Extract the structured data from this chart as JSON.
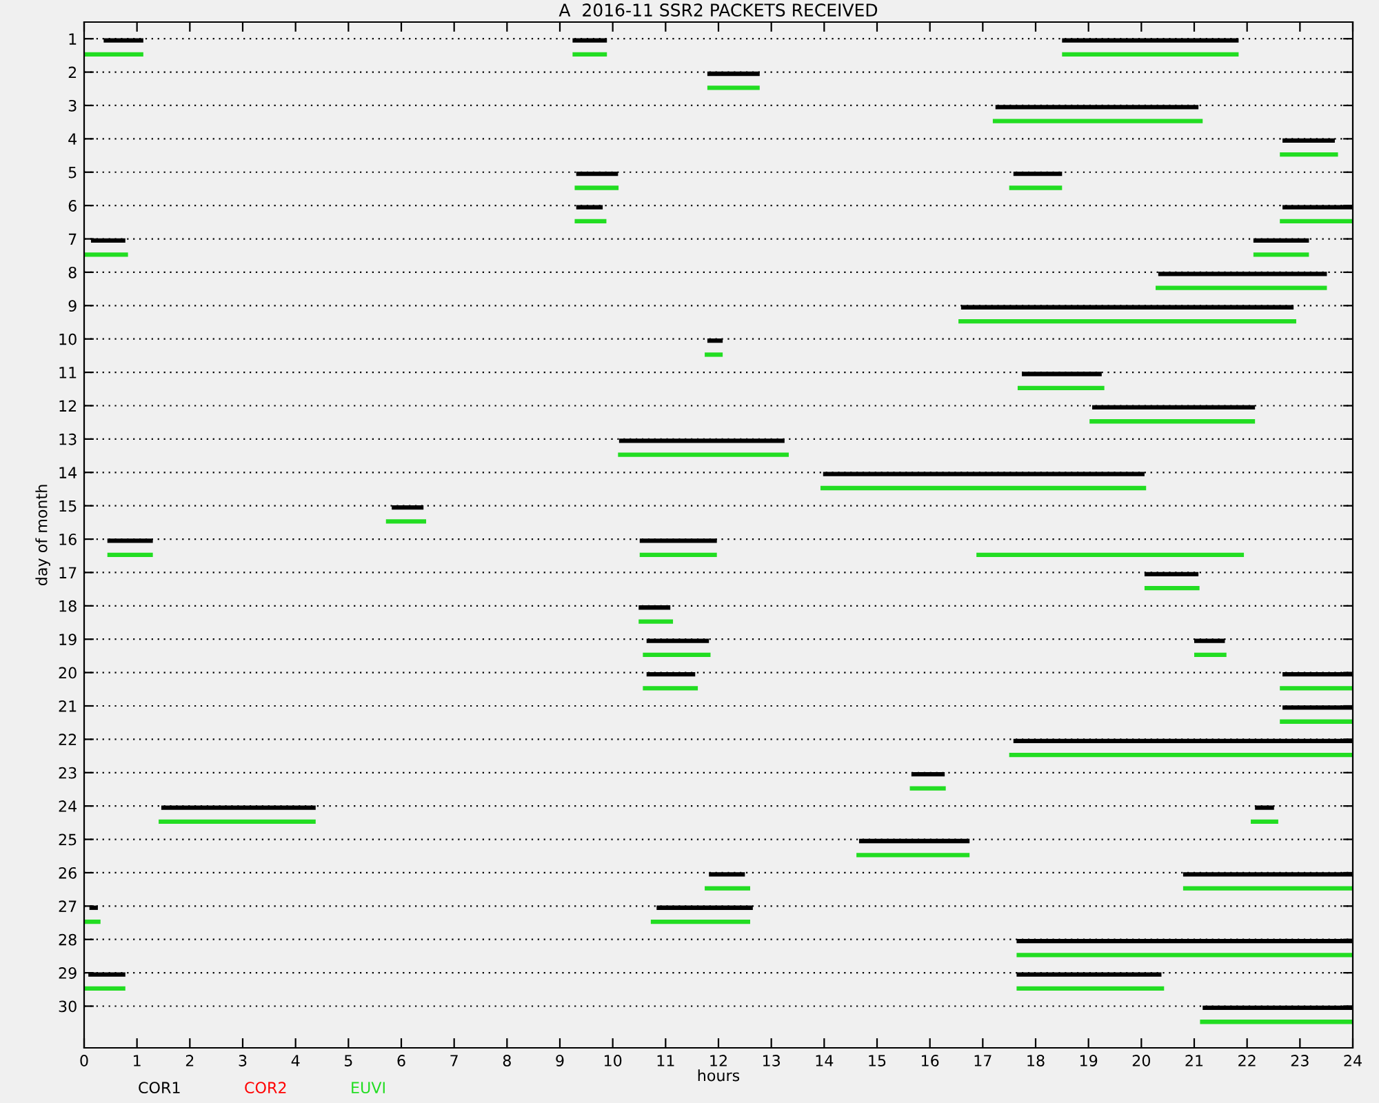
{
  "chart_data": {
    "type": "bar",
    "orientation": "horizontal",
    "title": "A  2016-11 SSR2 PACKETS RECEIVED",
    "xlabel": "hours",
    "ylabel": "day of month",
    "categories": [
      "1",
      "2",
      "3",
      "4",
      "5",
      "6",
      "7",
      "8",
      "9",
      "10",
      "11",
      "12",
      "13",
      "14",
      "15",
      "16",
      "17",
      "18",
      "19",
      "20",
      "21",
      "22",
      "23",
      "24",
      "25",
      "26",
      "27",
      "28",
      "29",
      "30"
    ],
    "xlim": [
      0,
      24
    ],
    "xticks": [
      0,
      1,
      2,
      3,
      4,
      5,
      6,
      7,
      8,
      9,
      10,
      11,
      12,
      13,
      14,
      15,
      16,
      17,
      18,
      19,
      20,
      21,
      22,
      23,
      24
    ],
    "grid": "y",
    "legend": "bottom",
    "series": [
      {
        "name": "COR1",
        "color": "#000000",
        "base": [
          0.37,
          11.79,
          17.24,
          22.67,
          9.31,
          9.31,
          0.13,
          20.32,
          16.59,
          11.79,
          17.74,
          19.07,
          10.12,
          13.98,
          5.82,
          0.44,
          20.06,
          10.49,
          10.64,
          10.64,
          22.67,
          17.58,
          15.65,
          1.46,
          14.66,
          11.82,
          0.1,
          17.64,
          0.08,
          21.16
        ],
        "values": [
          0.75,
          0.99,
          3.84,
          0.99,
          0.79,
          0.5,
          0.65,
          3.19,
          6.29,
          0.29,
          1.51,
          3.08,
          3.13,
          6.08,
          0.6,
          0.86,
          1.02,
          0.6,
          1.18,
          0.92,
          1.33,
          6.42,
          0.63,
          2.92,
          2.09,
          0.68,
          0.16,
          6.36,
          0.7,
          2.84
        ]
      },
      {
        "color": "#000000",
        "base": [
          9.24,
          null,
          null,
          null,
          17.58,
          22.67,
          22.12,
          null,
          null,
          null,
          null,
          null,
          null,
          null,
          null,
          10.51,
          null,
          null,
          21.0,
          22.67,
          null,
          null,
          null,
          22.15,
          null,
          20.79,
          10.83,
          null,
          17.64,
          null
        ],
        "values": [
          0.65,
          null,
          null,
          null,
          0.92,
          1.33,
          1.05,
          null,
          null,
          null,
          null,
          null,
          null,
          null,
          null,
          1.46,
          null,
          null,
          0.58,
          1.33,
          null,
          null,
          null,
          0.36,
          null,
          3.21,
          1.82,
          null,
          2.74,
          null
        ]
      },
      {
        "color": "#000000",
        "base": [
          18.5,
          null,
          null,
          null,
          null,
          null,
          null,
          null,
          null,
          null,
          null,
          null,
          null,
          null,
          null,
          null,
          null,
          null,
          null,
          null,
          null,
          null,
          null,
          null,
          null,
          null,
          null,
          null,
          null,
          null
        ],
        "values": [
          3.34,
          null,
          null,
          null,
          null,
          null,
          null,
          null,
          null,
          null,
          null,
          null,
          null,
          null,
          null,
          null,
          null,
          null,
          null,
          null,
          null,
          null,
          null,
          null,
          null,
          null,
          null,
          null,
          null,
          null
        ]
      },
      {
        "name": "COR2",
        "color": "#ff0000",
        "base": [
          null,
          null,
          null,
          null,
          null,
          null,
          null,
          null,
          null,
          null,
          null,
          null,
          null,
          null,
          null,
          null,
          null,
          null,
          null,
          null,
          null,
          null,
          null,
          null,
          null,
          null,
          null,
          null,
          null,
          null
        ],
        "values": [
          null,
          null,
          null,
          null,
          null,
          null,
          null,
          null,
          null,
          null,
          null,
          null,
          null,
          null,
          null,
          null,
          null,
          null,
          null,
          null,
          null,
          null,
          null,
          null,
          null,
          null,
          null,
          null,
          null,
          null
        ]
      },
      {
        "name": "EUVI",
        "color": "#22dd22",
        "base": [
          0,
          11.79,
          17.19,
          22.62,
          9.28,
          9.28,
          0,
          20.27,
          16.54,
          11.74,
          17.66,
          19.02,
          10.1,
          13.93,
          5.71,
          0.44,
          20.06,
          10.49,
          10.57,
          10.57,
          22.62,
          17.5,
          15.62,
          1.41,
          14.61,
          11.74,
          0,
          17.64,
          0,
          21.11
        ],
        "values": [
          1.12,
          0.99,
          3.97,
          1.1,
          0.83,
          0.6,
          0.83,
          3.24,
          6.39,
          0.34,
          1.64,
          3.13,
          3.23,
          6.16,
          0.76,
          0.86,
          1.04,
          0.65,
          1.28,
          1.04,
          1.38,
          6.5,
          0.68,
          2.97,
          2.14,
          0.86,
          0.31,
          6.36,
          0.78,
          2.89
        ]
      },
      {
        "color": "#22dd22",
        "base": [
          9.24,
          null,
          null,
          null,
          17.5,
          22.62,
          22.12,
          null,
          null,
          null,
          null,
          null,
          null,
          null,
          null,
          10.51,
          null,
          null,
          21.0,
          22.62,
          null,
          null,
          null,
          22.07,
          null,
          20.79,
          10.72,
          null,
          17.64,
          null
        ],
        "values": [
          0.65,
          null,
          null,
          null,
          1.0,
          1.38,
          1.05,
          null,
          null,
          null,
          null,
          null,
          null,
          null,
          null,
          1.46,
          null,
          null,
          0.61,
          1.38,
          null,
          null,
          null,
          0.52,
          null,
          3.21,
          1.88,
          null,
          2.79,
          null
        ]
      },
      {
        "color": "#22dd22",
        "base": [
          18.5,
          null,
          null,
          null,
          null,
          null,
          null,
          null,
          null,
          null,
          null,
          null,
          null,
          null,
          null,
          16.88,
          null,
          null,
          null,
          null,
          null,
          null,
          null,
          null,
          null,
          null,
          null,
          null,
          null,
          null
        ],
        "values": [
          3.34,
          null,
          null,
          null,
          null,
          null,
          null,
          null,
          null,
          null,
          null,
          null,
          null,
          null,
          null,
          5.06,
          null,
          null,
          null,
          null,
          null,
          null,
          null,
          null,
          null,
          null,
          null,
          null,
          null,
          null
        ]
      }
    ]
  }
}
